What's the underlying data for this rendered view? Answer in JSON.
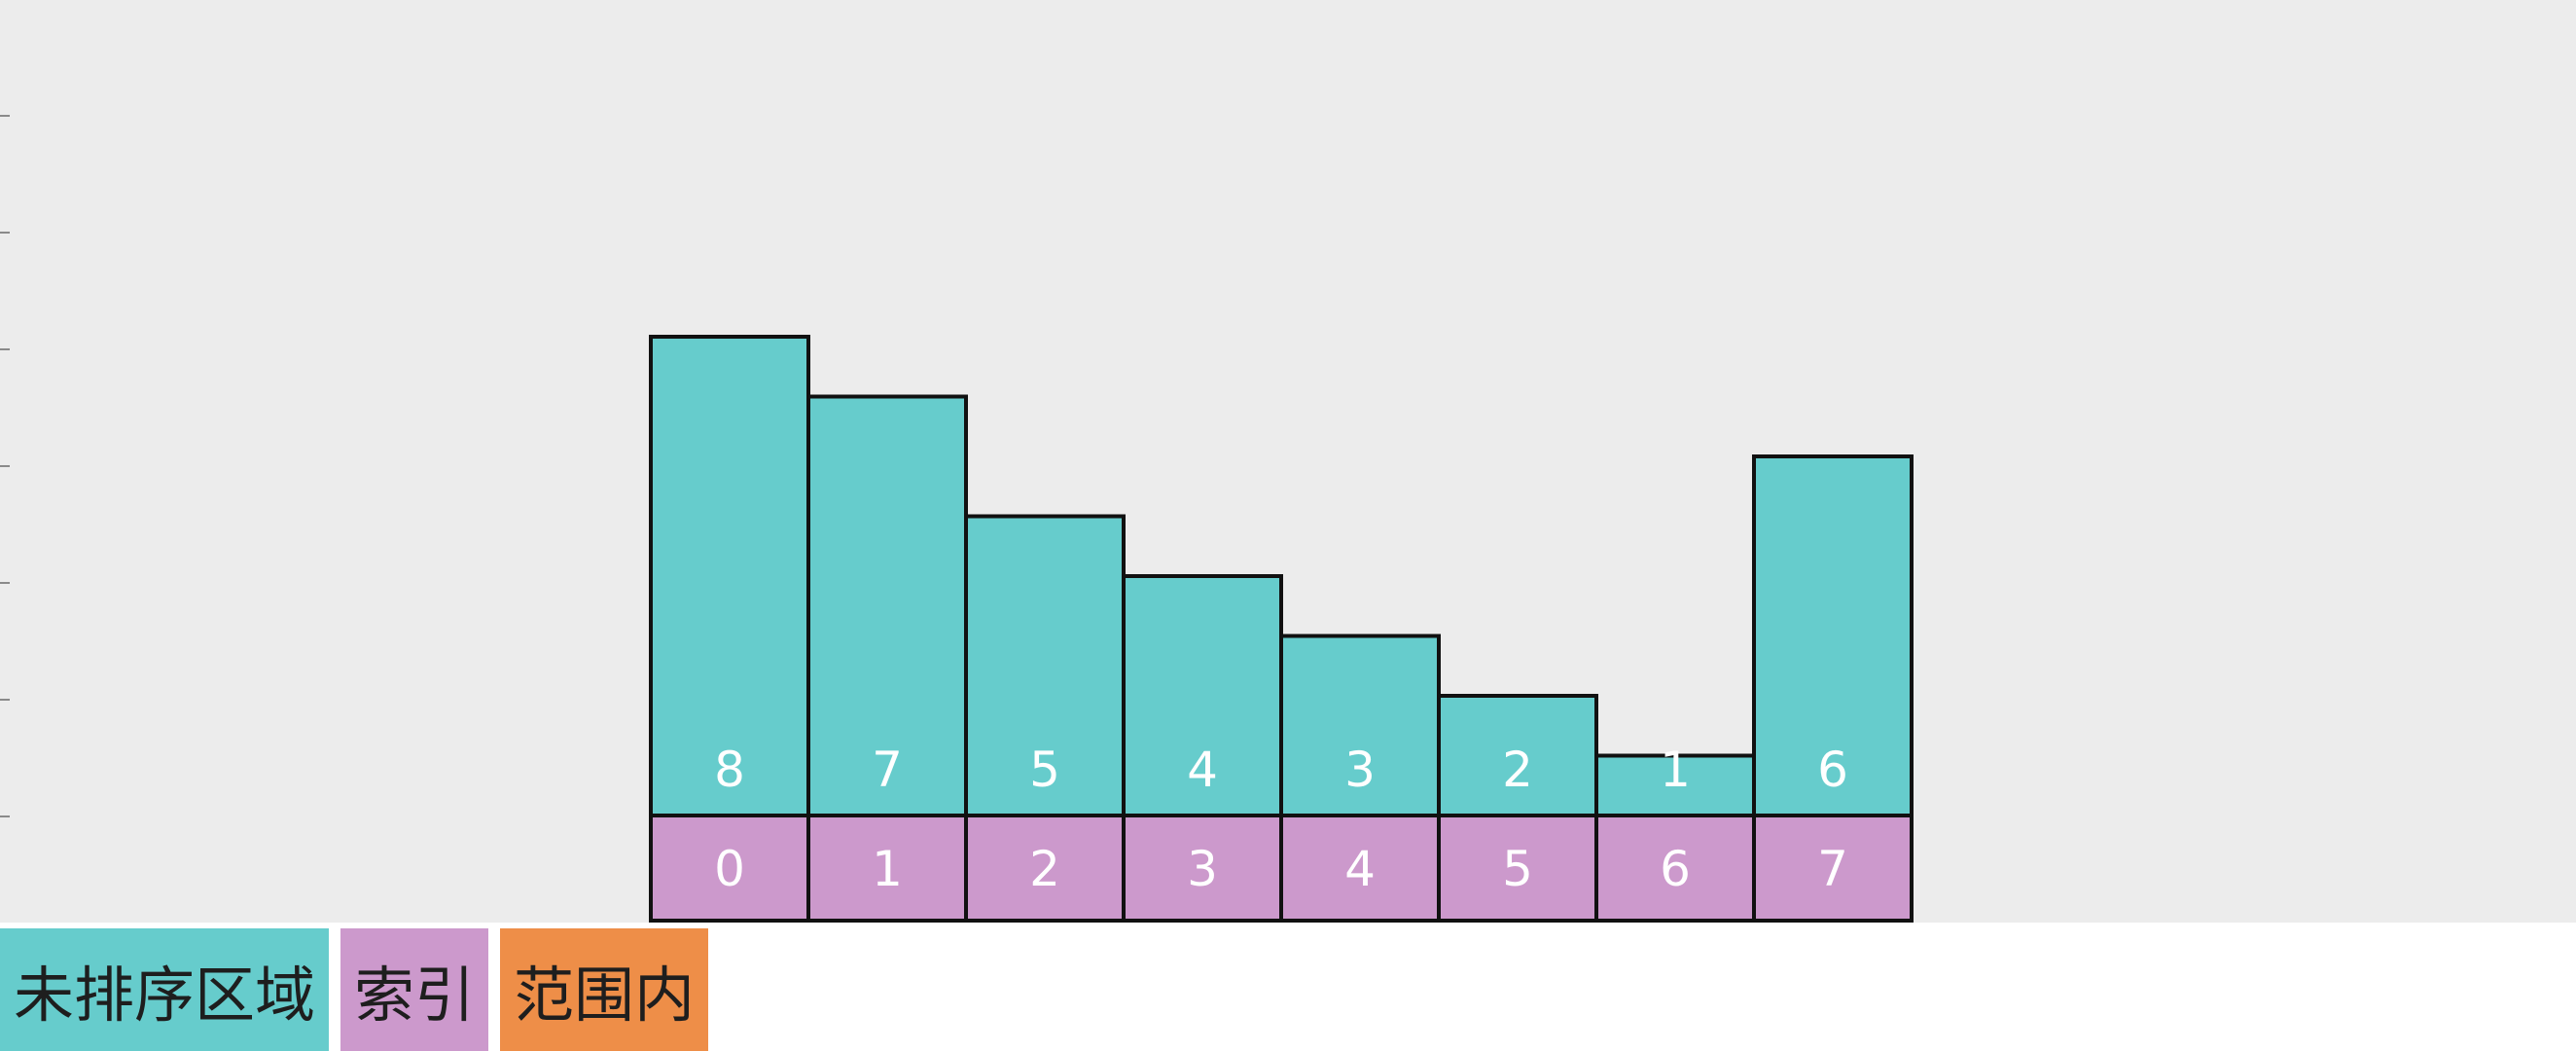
{
  "chart_data": {
    "type": "bar",
    "categories": [
      "0",
      "1",
      "2",
      "3",
      "4",
      "5",
      "6",
      "7"
    ],
    "values": [
      8,
      7,
      5,
      4,
      3,
      2,
      1,
      6
    ],
    "value_labels": [
      "8",
      "7",
      "5",
      "4",
      "3",
      "2",
      "1",
      "6"
    ],
    "index_labels": [
      "0",
      "1",
      "2",
      "3",
      "4",
      "5",
      "6",
      "7"
    ],
    "title": "",
    "xlabel": "",
    "ylabel": "",
    "ylim": [
      0,
      8
    ],
    "grid": false,
    "legend_position": "bottom-left"
  },
  "legend": {
    "unsorted_label": "未排序区域",
    "index_label": "索引",
    "range_label": "范围内"
  },
  "colors": {
    "bar": "#66cccc",
    "index_cell": "#cc99cc",
    "range": "#ee8e48",
    "background": "#ececec",
    "border": "#111111",
    "value_text": "#ffffff",
    "index_text": "#ffffff"
  }
}
